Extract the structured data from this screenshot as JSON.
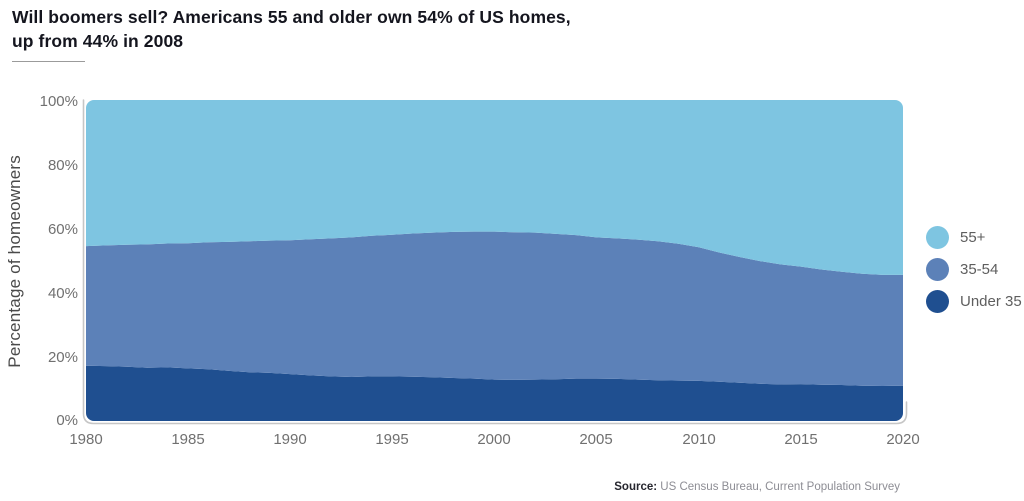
{
  "title": {
    "line1": "Will boomers sell? Americans 55 and older own 54% of US homes,",
    "line2": "up from 44% in 2008"
  },
  "y_axis": {
    "title": "Percentage of homeowners",
    "ticks": [
      "100%",
      "80%",
      "60%",
      "40%",
      "20%",
      "0%"
    ]
  },
  "x_axis": {
    "ticks": [
      "1980",
      "1985",
      "1990",
      "1995",
      "2000",
      "2005",
      "2010",
      "2015",
      "2020"
    ]
  },
  "legend": {
    "items": [
      {
        "label": "55+",
        "color": "#7ec5e1"
      },
      {
        "label": "35-54",
        "color": "#5c81b8"
      },
      {
        "label": "Under 35",
        "color": "#1f4f90"
      }
    ]
  },
  "source": {
    "label": "Source:",
    "text": " US Census Bureau, Current Population Survey"
  },
  "chart_data": {
    "type": "area",
    "stacked": true,
    "title": "Will boomers sell? Americans 55 and older own 54% of US homes, up from 44% in 2008",
    "xlabel": "",
    "ylabel": "Percentage of homeowners",
    "xlim": [
      1980,
      2020
    ],
    "ylim": [
      0,
      100
    ],
    "grid": false,
    "legend_position": "right",
    "x": [
      1980,
      1981,
      1982,
      1983,
      1984,
      1985,
      1986,
      1987,
      1988,
      1989,
      1990,
      1991,
      1992,
      1993,
      1994,
      1995,
      1996,
      1997,
      1998,
      1999,
      2000,
      2001,
      2002,
      2003,
      2004,
      2005,
      2006,
      2007,
      2008,
      2009,
      2010,
      2011,
      2012,
      2013,
      2014,
      2015,
      2016,
      2017,
      2018,
      2019,
      2020
    ],
    "series": [
      {
        "name": "Under 35",
        "color": "#1f4f90",
        "values": [
          17.2,
          17.1,
          16.9,
          16.6,
          16.7,
          16.4,
          16.1,
          15.6,
          15.2,
          15.0,
          14.6,
          14.2,
          13.9,
          13.7,
          13.9,
          13.9,
          13.8,
          13.6,
          13.4,
          13.2,
          12.9,
          12.8,
          12.9,
          13.0,
          13.2,
          13.2,
          13.1,
          12.9,
          12.7,
          12.6,
          12.5,
          12.2,
          11.9,
          11.6,
          11.4,
          11.5,
          11.3,
          11.2,
          11.0,
          10.9,
          11.0
        ]
      },
      {
        "name": "35-54",
        "color": "#5c81b8",
        "values": [
          37.3,
          37.6,
          38.0,
          38.4,
          38.6,
          39.0,
          39.6,
          40.2,
          40.8,
          41.2,
          41.7,
          42.4,
          43.0,
          43.5,
          43.8,
          44.1,
          44.6,
          45.1,
          45.5,
          45.8,
          46.1,
          46.0,
          45.8,
          45.3,
          44.7,
          44.0,
          43.8,
          43.6,
          43.3,
          42.6,
          41.6,
          40.3,
          39.2,
          38.2,
          37.4,
          36.6,
          35.9,
          35.3,
          34.9,
          34.6,
          34.5
        ]
      },
      {
        "name": "55+",
        "color": "#7ec5e1",
        "values": [
          45.5,
          45.3,
          45.1,
          45.0,
          44.7,
          44.6,
          44.3,
          44.2,
          44.0,
          43.8,
          43.7,
          43.4,
          43.1,
          42.8,
          42.3,
          42.0,
          41.6,
          41.3,
          41.1,
          41.0,
          41.0,
          41.2,
          41.3,
          41.7,
          42.1,
          42.8,
          43.1,
          43.5,
          44.0,
          44.8,
          45.9,
          47.5,
          48.9,
          50.2,
          51.2,
          51.9,
          52.8,
          53.5,
          54.1,
          54.5,
          54.5
        ]
      }
    ]
  }
}
